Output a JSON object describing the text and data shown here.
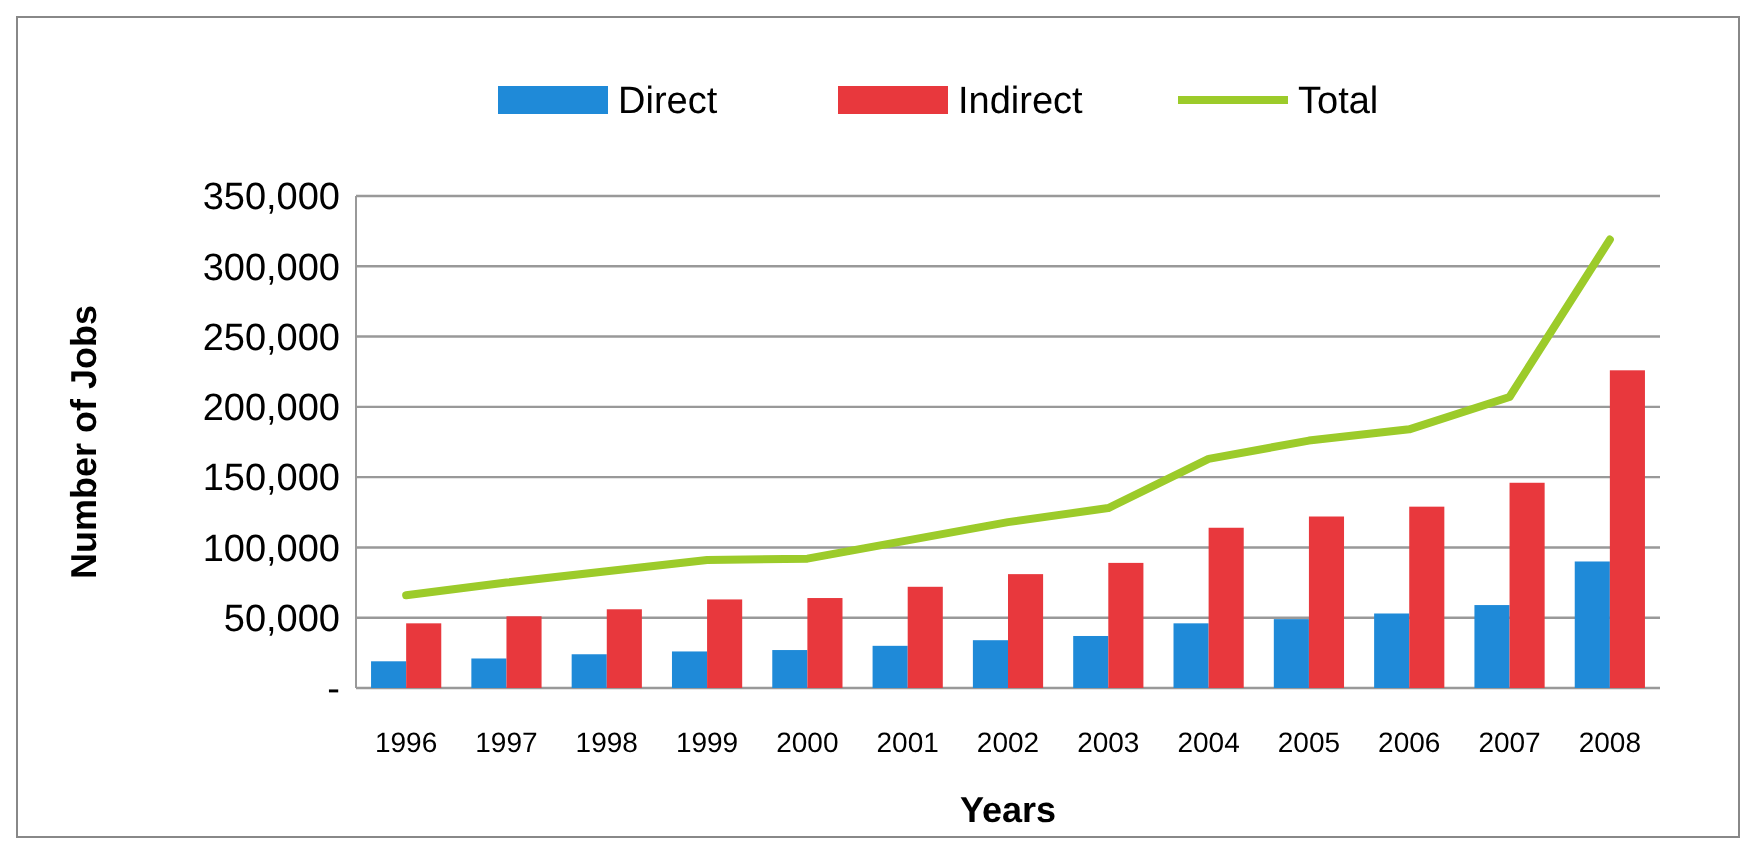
{
  "chart_data": {
    "type": "bar",
    "xlabel": "Years",
    "ylabel": "Number of Jobs",
    "categories": [
      "1996",
      "1997",
      "1998",
      "1999",
      "2000",
      "2001",
      "2002",
      "2003",
      "2004",
      "2005",
      "2006",
      "2007",
      "2008"
    ],
    "series": [
      {
        "name": "Direct",
        "color": "#1f8ad8",
        "values": [
          19000,
          21000,
          24000,
          26000,
          27000,
          30000,
          34000,
          37000,
          46000,
          49000,
          53000,
          59000,
          90000
        ]
      },
      {
        "name": "Indirect",
        "color": "#e8383d",
        "values": [
          46000,
          51000,
          56000,
          63000,
          64000,
          72000,
          81000,
          89000,
          114000,
          122000,
          129000,
          146000,
          226000
        ]
      },
      {
        "name": "Total",
        "type": "line",
        "color": "#9ccb2a",
        "values": [
          66000,
          75000,
          83000,
          91000,
          92000,
          105000,
          118000,
          128000,
          163000,
          176000,
          184000,
          207000,
          319000
        ]
      }
    ],
    "ylim": [
      0,
      350000
    ],
    "yticks": [
      {
        "value": 0,
        "label": "-"
      },
      {
        "value": 50000,
        "label": "50,000"
      },
      {
        "value": 100000,
        "label": "100,000"
      },
      {
        "value": 150000,
        "label": "150,000"
      },
      {
        "value": 200000,
        "label": "200,000"
      },
      {
        "value": 250000,
        "label": "250,000"
      },
      {
        "value": 300000,
        "label": "300,000"
      },
      {
        "value": 350000,
        "label": "350,000"
      }
    ],
    "grid": "y",
    "legend": "top",
    "line_style": "solid",
    "marker": "none"
  }
}
